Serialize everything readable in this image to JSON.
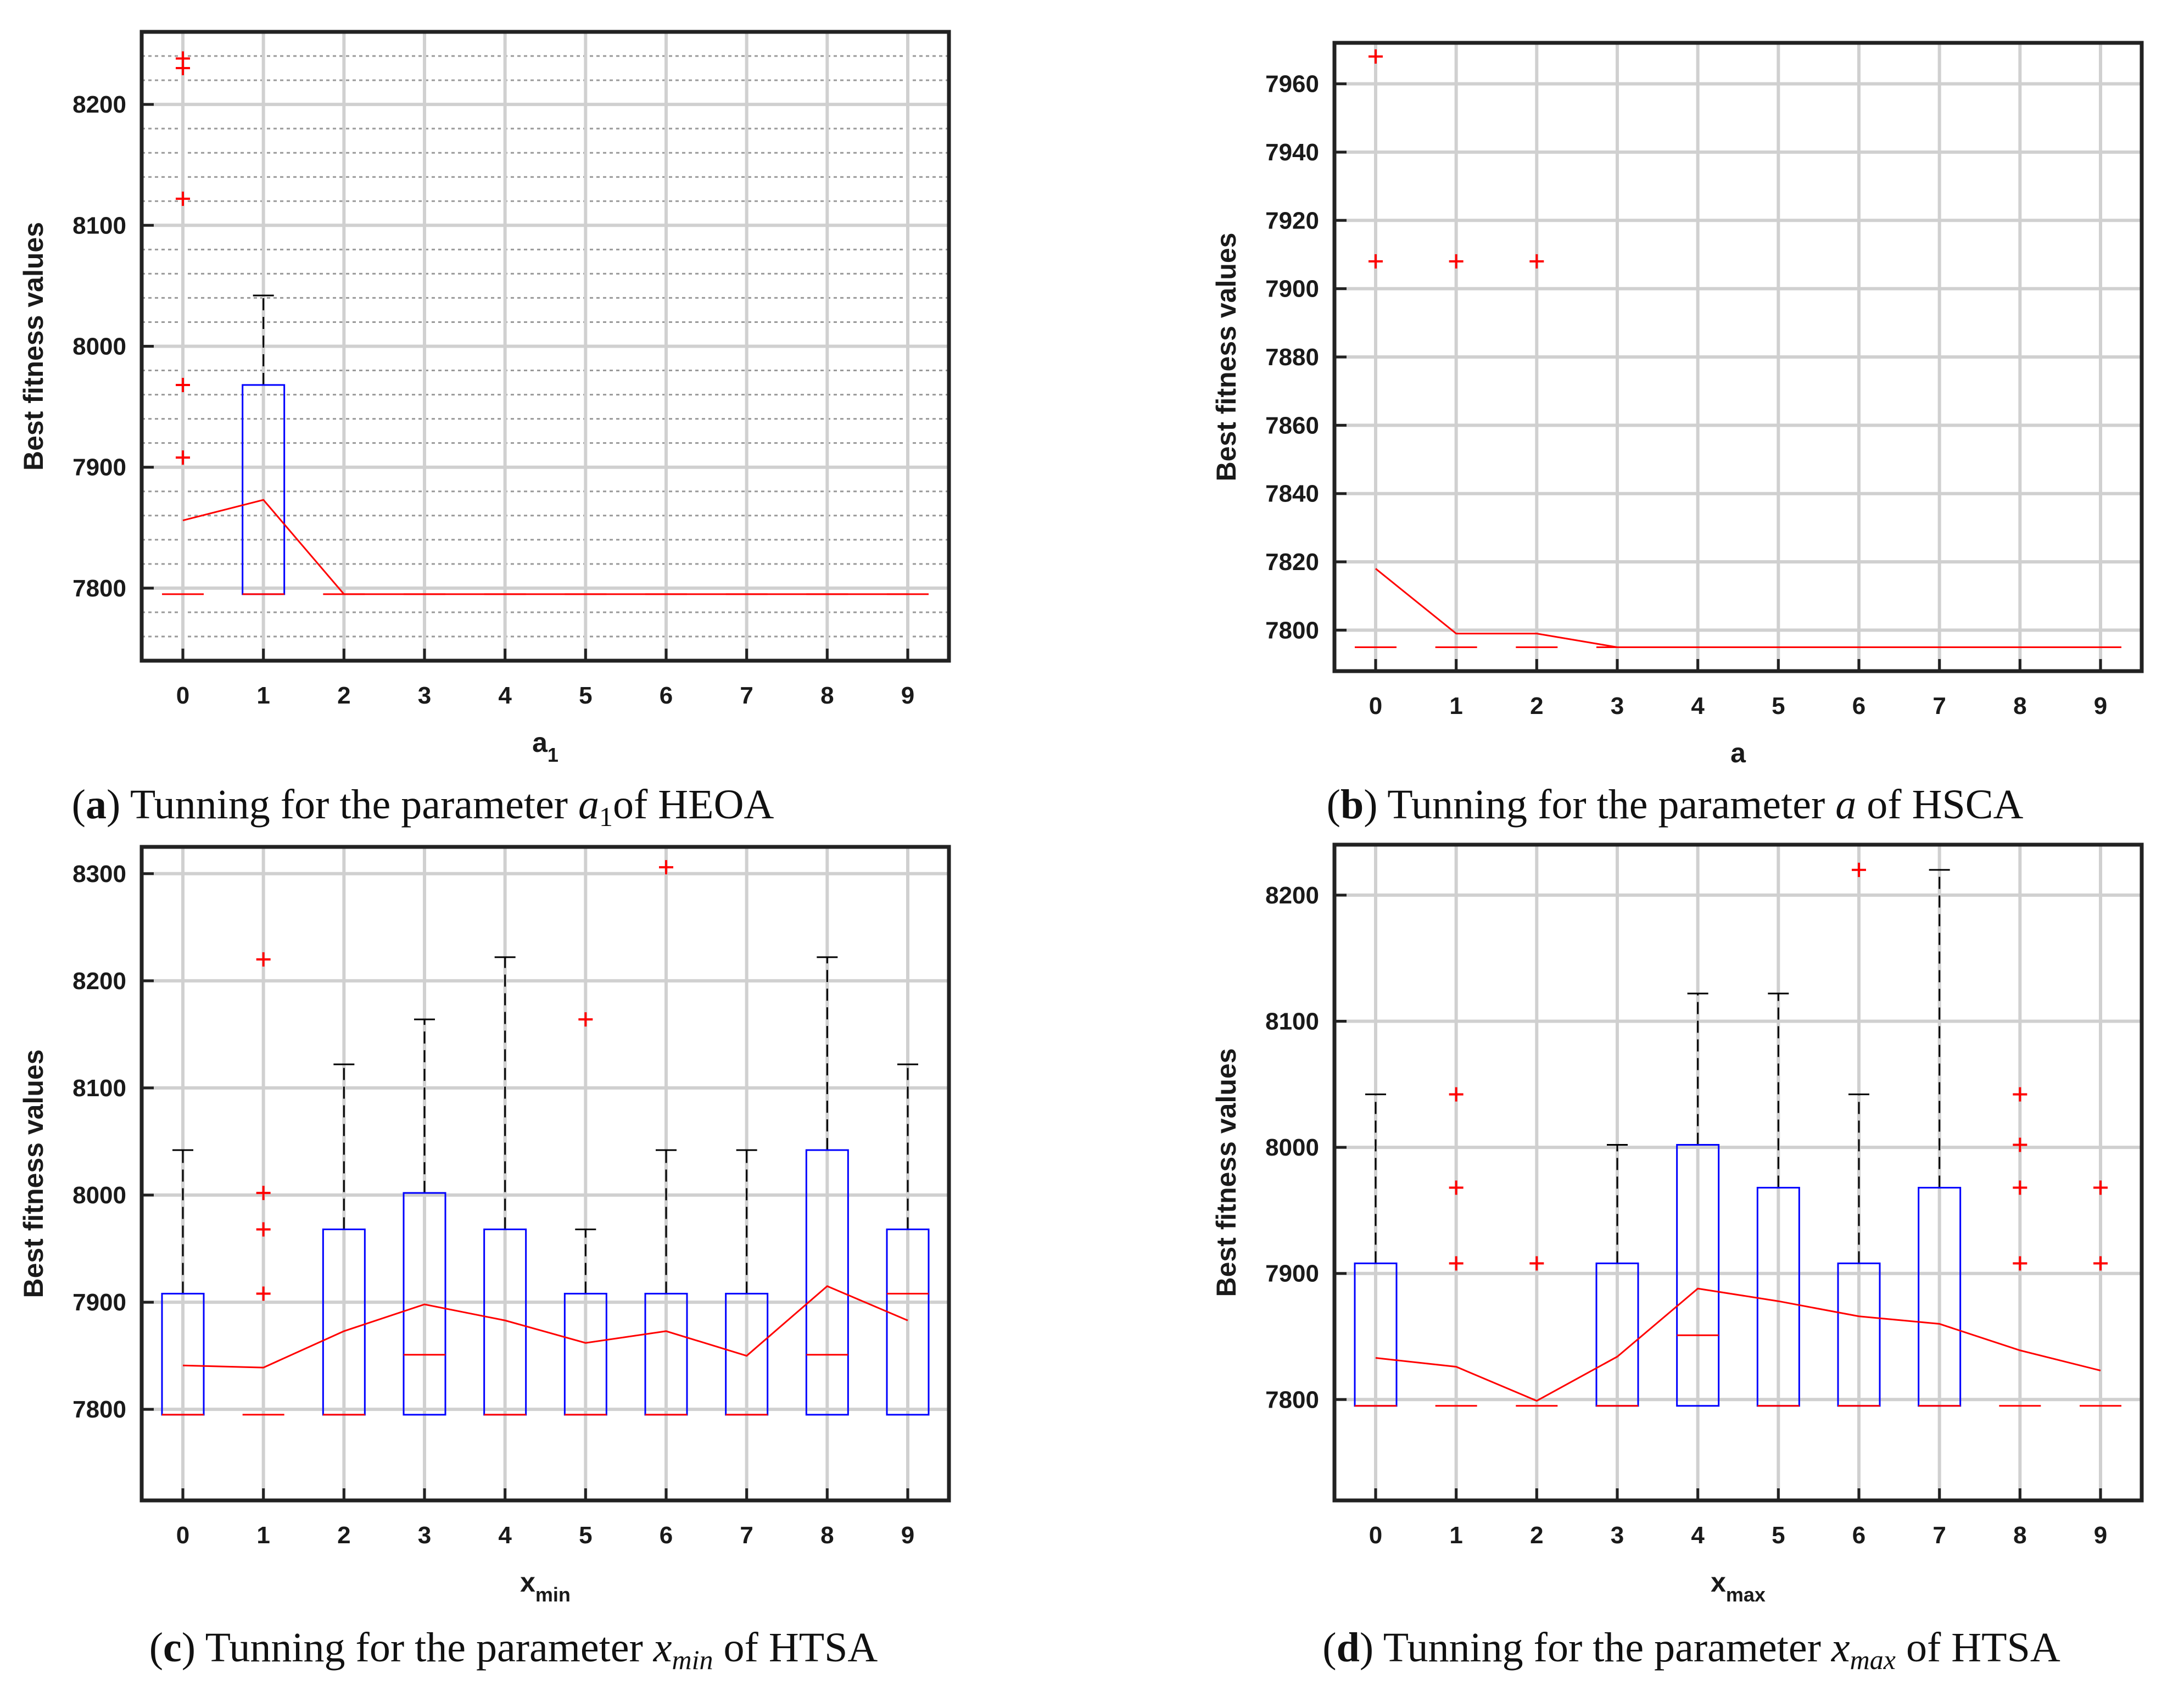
{
  "colors": {
    "box": "#0000ff",
    "median": "#ff0000",
    "outlier": "#ff0000",
    "mean_line": "#ff0000",
    "whisker": "#000000",
    "grid": "#d0d0d0",
    "axis": "#222222"
  },
  "chart_data": [
    {
      "id": "a",
      "type": "box",
      "xlabel": "a",
      "xlabel_sub": "1",
      "ylabel": "Best fitness values",
      "ylim": [
        7740,
        8260
      ],
      "yticks": [
        7800,
        7900,
        8000,
        8100,
        8200
      ],
      "minor_grid_step": 20,
      "categories": [
        "0",
        "1",
        "2",
        "3",
        "4",
        "5",
        "6",
        "7",
        "8",
        "9"
      ],
      "boxes": [
        {
          "min": 7795,
          "q1": 7795,
          "median": 7795,
          "q3": 7795,
          "max": 7795,
          "outliers": [
            7908,
            7968,
            8122,
            8230,
            8238
          ],
          "mean": 7856
        },
        {
          "min": 7795,
          "q1": 7795,
          "median": 7795,
          "q3": 7968,
          "max": 8042,
          "outliers": [],
          "mean": 7873
        },
        {
          "min": 7795,
          "q1": 7795,
          "median": 7795,
          "q3": 7795,
          "max": 7795,
          "outliers": [],
          "mean": 7795
        },
        {
          "min": 7795,
          "q1": 7795,
          "median": 7795,
          "q3": 7795,
          "max": 7795,
          "outliers": [],
          "mean": 7795
        },
        {
          "min": 7795,
          "q1": 7795,
          "median": 7795,
          "q3": 7795,
          "max": 7795,
          "outliers": [],
          "mean": 7795
        },
        {
          "min": 7795,
          "q1": 7795,
          "median": 7795,
          "q3": 7795,
          "max": 7795,
          "outliers": [],
          "mean": 7795
        },
        {
          "min": 7795,
          "q1": 7795,
          "median": 7795,
          "q3": 7795,
          "max": 7795,
          "outliers": [],
          "mean": 7795
        },
        {
          "min": 7795,
          "q1": 7795,
          "median": 7795,
          "q3": 7795,
          "max": 7795,
          "outliers": [],
          "mean": 7795
        },
        {
          "min": 7795,
          "q1": 7795,
          "median": 7795,
          "q3": 7795,
          "max": 7795,
          "outliers": [],
          "mean": 7795
        },
        {
          "min": 7795,
          "q1": 7795,
          "median": 7795,
          "q3": 7795,
          "max": 7795,
          "outliers": [],
          "mean": 7795
        }
      ],
      "caption": {
        "label": "a",
        "text_before": "Tunning for the parameter ",
        "param": "a",
        "param_sub": "1",
        "text_after": "of HEOA"
      }
    },
    {
      "id": "b",
      "type": "box",
      "xlabel": "a",
      "xlabel_sub": "",
      "ylabel": "Best fitness values",
      "ylim": [
        7788,
        7972
      ],
      "yticks": [
        7800,
        7820,
        7840,
        7860,
        7880,
        7900,
        7920,
        7940,
        7960
      ],
      "minor_grid_step": 0,
      "categories": [
        "0",
        "1",
        "2",
        "3",
        "4",
        "5",
        "6",
        "7",
        "8",
        "9"
      ],
      "boxes": [
        {
          "min": 7795,
          "q1": 7795,
          "median": 7795,
          "q3": 7795,
          "max": 7795,
          "outliers": [
            7908,
            7968
          ],
          "mean": 7818
        },
        {
          "min": 7795,
          "q1": 7795,
          "median": 7795,
          "q3": 7795,
          "max": 7795,
          "outliers": [
            7908
          ],
          "mean": 7799
        },
        {
          "min": 7795,
          "q1": 7795,
          "median": 7795,
          "q3": 7795,
          "max": 7795,
          "outliers": [
            7908
          ],
          "mean": 7799
        },
        {
          "min": 7795,
          "q1": 7795,
          "median": 7795,
          "q3": 7795,
          "max": 7795,
          "outliers": [],
          "mean": 7795
        },
        {
          "min": 7795,
          "q1": 7795,
          "median": 7795,
          "q3": 7795,
          "max": 7795,
          "outliers": [],
          "mean": 7795
        },
        {
          "min": 7795,
          "q1": 7795,
          "median": 7795,
          "q3": 7795,
          "max": 7795,
          "outliers": [],
          "mean": 7795
        },
        {
          "min": 7795,
          "q1": 7795,
          "median": 7795,
          "q3": 7795,
          "max": 7795,
          "outliers": [],
          "mean": 7795
        },
        {
          "min": 7795,
          "q1": 7795,
          "median": 7795,
          "q3": 7795,
          "max": 7795,
          "outliers": [],
          "mean": 7795
        },
        {
          "min": 7795,
          "q1": 7795,
          "median": 7795,
          "q3": 7795,
          "max": 7795,
          "outliers": [],
          "mean": 7795
        },
        {
          "min": 7795,
          "q1": 7795,
          "median": 7795,
          "q3": 7795,
          "max": 7795,
          "outliers": [],
          "mean": 7795
        }
      ],
      "caption": {
        "label": "b",
        "text_before": "Tunning for the parameter ",
        "param": "a",
        "param_sub": "",
        "text_after": " of HSCA"
      }
    },
    {
      "id": "c",
      "type": "box",
      "xlabel": "x",
      "xlabel_sub": "min",
      "ylabel": "Best fitness values",
      "ylim": [
        7715,
        8325
      ],
      "yticks": [
        7800,
        7900,
        8000,
        8100,
        8200,
        8300
      ],
      "minor_grid_step": 0,
      "categories": [
        "0",
        "1",
        "2",
        "3",
        "4",
        "5",
        "6",
        "7",
        "8",
        "9"
      ],
      "boxes": [
        {
          "min": 7795,
          "q1": 7795,
          "median": 7795,
          "q3": 7908,
          "max": 8042,
          "outliers": [],
          "mean": 7841
        },
        {
          "min": 7795,
          "q1": 7795,
          "median": 7795,
          "q3": 7795,
          "max": 7795,
          "outliers": [
            7908,
            7968,
            8002,
            8220
          ],
          "mean": 7839
        },
        {
          "min": 7795,
          "q1": 7795,
          "median": 7795,
          "q3": 7968,
          "max": 8122,
          "outliers": [],
          "mean": 7873
        },
        {
          "min": 7795,
          "q1": 7795,
          "median": 7851,
          "q3": 8002,
          "max": 8164,
          "outliers": [],
          "mean": 7898
        },
        {
          "min": 7795,
          "q1": 7795,
          "median": 7795,
          "q3": 7968,
          "max": 8222,
          "outliers": [],
          "mean": 7883
        },
        {
          "min": 7795,
          "q1": 7795,
          "median": 7795,
          "q3": 7908,
          "max": 7968,
          "outliers": [
            8164
          ],
          "mean": 7862
        },
        {
          "min": 7795,
          "q1": 7795,
          "median": 7795,
          "q3": 7908,
          "max": 8042,
          "outliers": [
            8306
          ],
          "mean": 7873
        },
        {
          "min": 7795,
          "q1": 7795,
          "median": 7795,
          "q3": 7908,
          "max": 8042,
          "outliers": [],
          "mean": 7850
        },
        {
          "min": 7795,
          "q1": 7795,
          "median": 7851,
          "q3": 8042,
          "max": 8222,
          "outliers": [],
          "mean": 7915
        },
        {
          "min": 7795,
          "q1": 7795,
          "median": 7908,
          "q3": 7968,
          "max": 8122,
          "outliers": [],
          "mean": 7883
        }
      ],
      "caption": {
        "label": "c",
        "text_before": "Tunning for the parameter ",
        "param": "x",
        "param_sub": "min",
        "text_after": " of HTSA"
      }
    },
    {
      "id": "d",
      "type": "box",
      "xlabel": "x",
      "xlabel_sub": "max",
      "ylabel": "Best fitness values",
      "ylim": [
        7720,
        8240
      ],
      "yticks": [
        7800,
        7900,
        8000,
        8100,
        8200
      ],
      "minor_grid_step": 0,
      "categories": [
        "0",
        "1",
        "2",
        "3",
        "4",
        "5",
        "6",
        "7",
        "8",
        "9"
      ],
      "boxes": [
        {
          "min": 7795,
          "q1": 7795,
          "median": 7795,
          "q3": 7908,
          "max": 8042,
          "outliers": [],
          "mean": 7833
        },
        {
          "min": 7795,
          "q1": 7795,
          "median": 7795,
          "q3": 7795,
          "max": 7795,
          "outliers": [
            7908,
            7968,
            8042
          ],
          "mean": 7826
        },
        {
          "min": 7795,
          "q1": 7795,
          "median": 7795,
          "q3": 7795,
          "max": 7795,
          "outliers": [
            7908
          ],
          "mean": 7799
        },
        {
          "min": 7795,
          "q1": 7795,
          "median": 7795,
          "q3": 7908,
          "max": 8002,
          "outliers": [],
          "mean": 7834
        },
        {
          "min": 7795,
          "q1": 7795,
          "median": 7851,
          "q3": 8002,
          "max": 8122,
          "outliers": [],
          "mean": 7888
        },
        {
          "min": 7795,
          "q1": 7795,
          "median": 7795,
          "q3": 7968,
          "max": 8122,
          "outliers": [],
          "mean": 7878
        },
        {
          "min": 7795,
          "q1": 7795,
          "median": 7795,
          "q3": 7908,
          "max": 8042,
          "outliers": [
            8220
          ],
          "mean": 7866
        },
        {
          "min": 7795,
          "q1": 7795,
          "median": 7795,
          "q3": 7968,
          "max": 8220,
          "outliers": [],
          "mean": 7860
        },
        {
          "min": 7795,
          "q1": 7795,
          "median": 7795,
          "q3": 7795,
          "max": 7795,
          "outliers": [
            7908,
            7968,
            8002,
            8042
          ],
          "mean": 7839
        },
        {
          "min": 7795,
          "q1": 7795,
          "median": 7795,
          "q3": 7795,
          "max": 7795,
          "outliers": [
            7908,
            7968
          ],
          "mean": 7823
        }
      ],
      "caption": {
        "label": "d",
        "text_before": "Tunning for the parameter ",
        "param": "x",
        "param_sub": "max",
        "text_after": " of HTSA"
      }
    }
  ]
}
